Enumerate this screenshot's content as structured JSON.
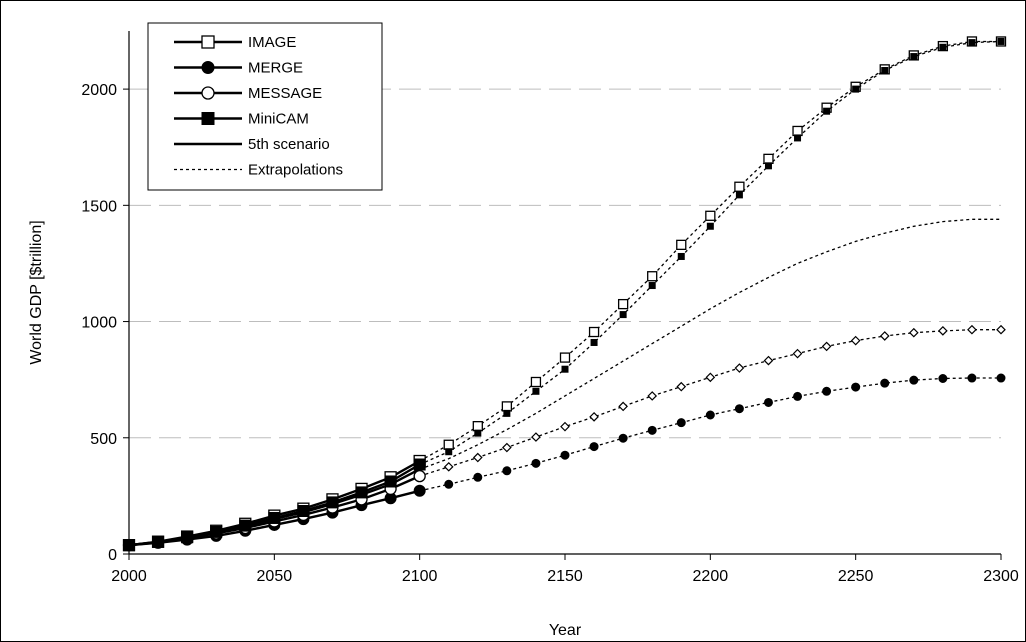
{
  "chart_data": {
    "type": "line",
    "xlabel": "Year",
    "ylabel": "World GDP [$trillion]",
    "xlim": [
      2000,
      2300
    ],
    "ylim": [
      0,
      2250
    ],
    "xticks": [
      "2000",
      "2050",
      "2100",
      "2150",
      "2200",
      "2250",
      "2300"
    ],
    "yticks": [
      "0",
      "500",
      "1000",
      "1500",
      "2000"
    ],
    "gridlines": "horizontal dashed",
    "legend_position": "top-left",
    "legend": [
      {
        "label": "IMAGE",
        "style": "solid",
        "marker": "open-square"
      },
      {
        "label": "MERGE",
        "style": "solid",
        "marker": "filled-circle"
      },
      {
        "label": "MESSAGE",
        "style": "solid",
        "marker": "open-circle"
      },
      {
        "label": "MiniCAM",
        "style": "solid",
        "marker": "filled-square"
      },
      {
        "label": "5th scenario",
        "style": "solid",
        "marker": "none"
      },
      {
        "label": "Extrapolations",
        "style": "dotted",
        "marker": "none"
      }
    ],
    "series": [
      {
        "name": "IMAGE",
        "x": [
          2000,
          2010,
          2020,
          2030,
          2040,
          2050,
          2060,
          2070,
          2080,
          2090,
          2100
        ],
        "values": [
          38,
          53,
          75,
          100,
          130,
          165,
          195,
          235,
          280,
          330,
          400
        ]
      },
      {
        "name": "MERGE",
        "x": [
          2000,
          2010,
          2020,
          2030,
          2040,
          2050,
          2060,
          2070,
          2080,
          2090,
          2100
        ],
        "values": [
          38,
          48,
          62,
          78,
          100,
          125,
          150,
          178,
          210,
          240,
          272
        ]
      },
      {
        "name": "MESSAGE",
        "x": [
          2000,
          2010,
          2020,
          2030,
          2040,
          2050,
          2060,
          2070,
          2080,
          2090,
          2100
        ],
        "values": [
          38,
          50,
          68,
          88,
          112,
          140,
          168,
          200,
          235,
          280,
          335
        ]
      },
      {
        "name": "MiniCAM",
        "x": [
          2000,
          2010,
          2020,
          2030,
          2040,
          2050,
          2060,
          2070,
          2080,
          2090,
          2100
        ],
        "values": [
          38,
          52,
          72,
          95,
          122,
          155,
          185,
          222,
          265,
          312,
          385
        ]
      },
      {
        "name": "5th scenario",
        "x": [
          2000,
          2010,
          2020,
          2030,
          2040,
          2050,
          2060,
          2070,
          2080,
          2090,
          2100
        ],
        "values": [
          38,
          51,
          70,
          92,
          118,
          150,
          180,
          215,
          255,
          300,
          365
        ]
      },
      {
        "name": "IMAGE extrapolation",
        "x": [
          2100,
          2110,
          2120,
          2130,
          2140,
          2150,
          2160,
          2170,
          2180,
          2190,
          2200,
          2210,
          2220,
          2230,
          2240,
          2250,
          2260,
          2270,
          2280,
          2290,
          2300
        ],
        "values": [
          400,
          470,
          550,
          635,
          740,
          845,
          955,
          1075,
          1195,
          1330,
          1455,
          1580,
          1700,
          1820,
          1920,
          2010,
          2085,
          2145,
          2185,
          2205,
          2205
        ]
      },
      {
        "name": "MERGE extrapolation",
        "x": [
          2100,
          2110,
          2120,
          2130,
          2140,
          2150,
          2160,
          2170,
          2180,
          2190,
          2200,
          2210,
          2220,
          2230,
          2240,
          2250,
          2260,
          2270,
          2280,
          2290,
          2300
        ],
        "values": [
          272,
          300,
          330,
          358,
          390,
          425,
          462,
          498,
          532,
          565,
          598,
          625,
          652,
          678,
          700,
          718,
          735,
          748,
          755,
          757,
          757
        ]
      },
      {
        "name": "MESSAGE extrapolation",
        "x": [
          2100,
          2110,
          2120,
          2130,
          2140,
          2150,
          2160,
          2170,
          2180,
          2190,
          2200,
          2210,
          2220,
          2230,
          2240,
          2250,
          2260,
          2270,
          2280,
          2290,
          2300
        ],
        "values": [
          335,
          375,
          415,
          458,
          503,
          548,
          590,
          635,
          680,
          720,
          760,
          800,
          832,
          862,
          893,
          918,
          938,
          952,
          960,
          965,
          965
        ]
      },
      {
        "name": "MiniCAM extrapolation",
        "x": [
          2100,
          2110,
          2120,
          2130,
          2140,
          2150,
          2160,
          2170,
          2180,
          2190,
          2200,
          2210,
          2220,
          2230,
          2240,
          2250,
          2260,
          2270,
          2280,
          2290,
          2300
        ],
        "values": [
          385,
          440,
          520,
          605,
          700,
          795,
          910,
          1030,
          1155,
          1280,
          1410,
          1545,
          1670,
          1790,
          1905,
          2000,
          2080,
          2140,
          2180,
          2200,
          2205
        ]
      },
      {
        "name": "5th scenario extrapolation",
        "x": [
          2100,
          2110,
          2120,
          2130,
          2140,
          2150,
          2160,
          2170,
          2180,
          2190,
          2200,
          2210,
          2220,
          2230,
          2240,
          2250,
          2260,
          2270,
          2280,
          2290,
          2300
        ],
        "values": [
          365,
          410,
          470,
          535,
          605,
          680,
          755,
          830,
          905,
          980,
          1055,
          1125,
          1190,
          1250,
          1300,
          1345,
          1380,
          1410,
          1430,
          1440,
          1440
        ]
      }
    ]
  }
}
